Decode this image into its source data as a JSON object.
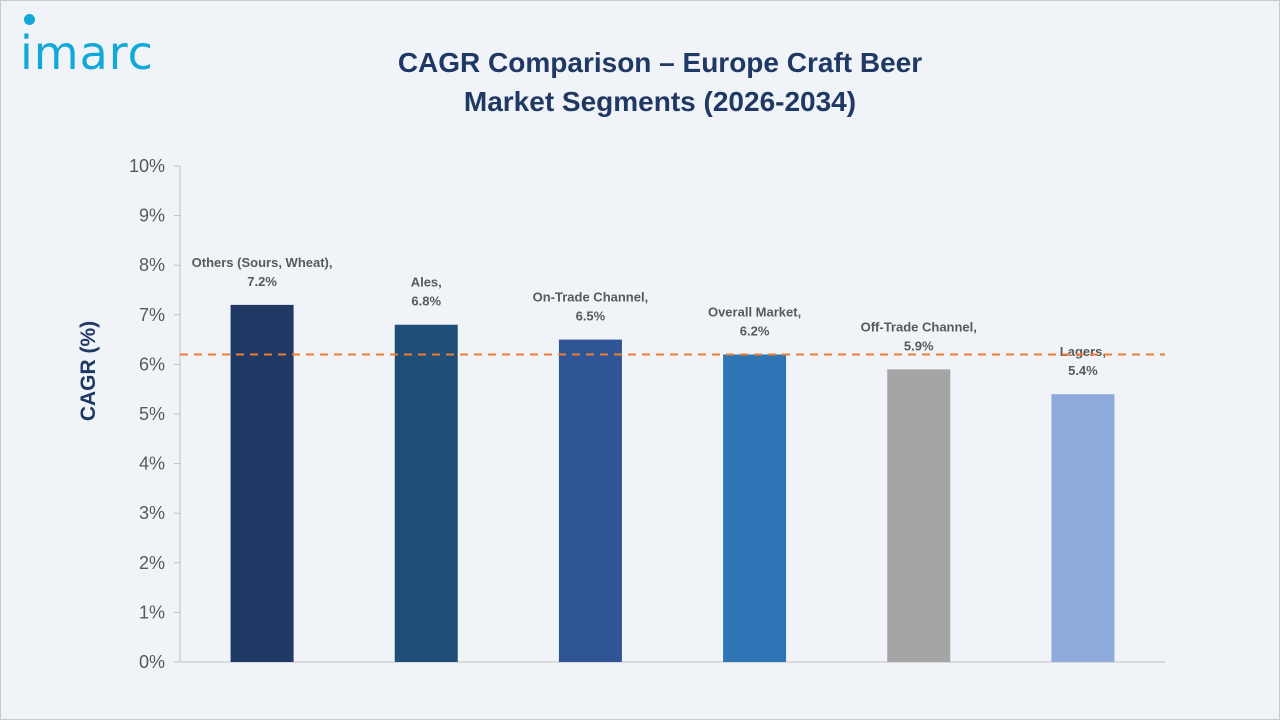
{
  "logo": {
    "text": "imarc"
  },
  "title_line1": "CAGR Comparison – Europe Craft Beer",
  "title_line2": "Market Segments (2026-2034)",
  "chart_data": {
    "type": "bar",
    "title": "CAGR Comparison – Europe Craft Beer Market Segments (2026-2034)",
    "xlabel": "",
    "ylabel": "CAGR (%)",
    "ylim": [
      0,
      10
    ],
    "yticks": [
      "0%",
      "1%",
      "2%",
      "3%",
      "4%",
      "5%",
      "6%",
      "7%",
      "8%",
      "9%",
      "10%"
    ],
    "categories": [
      "Others (Sours, Wheat)",
      "Ales",
      "On-Trade Channel",
      "Overall Market",
      "Off-Trade Channel",
      "Lagers"
    ],
    "values": [
      7.2,
      6.8,
      6.5,
      6.2,
      5.9,
      5.4
    ],
    "value_labels": [
      "7.2%",
      "6.8%",
      "6.5%",
      "6.2%",
      "5.9%",
      "5.4%"
    ],
    "colors": [
      "#203864",
      "#1f4e79",
      "#2f5597",
      "#2e75b6",
      "#a5a5a5",
      "#8faadc"
    ],
    "reference_line": {
      "value": 6.2,
      "color": "#ed7d31",
      "style": "dashed"
    },
    "grid": false,
    "legend": "none"
  }
}
